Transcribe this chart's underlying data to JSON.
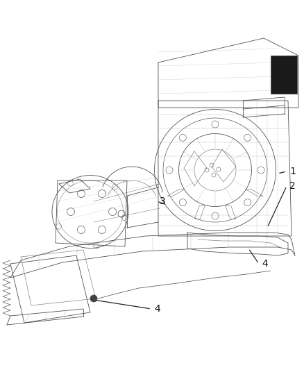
{
  "background_color": "#ffffff",
  "figure_width": 4.38,
  "figure_height": 5.33,
  "dpi": 100,
  "image_b64": ""
}
